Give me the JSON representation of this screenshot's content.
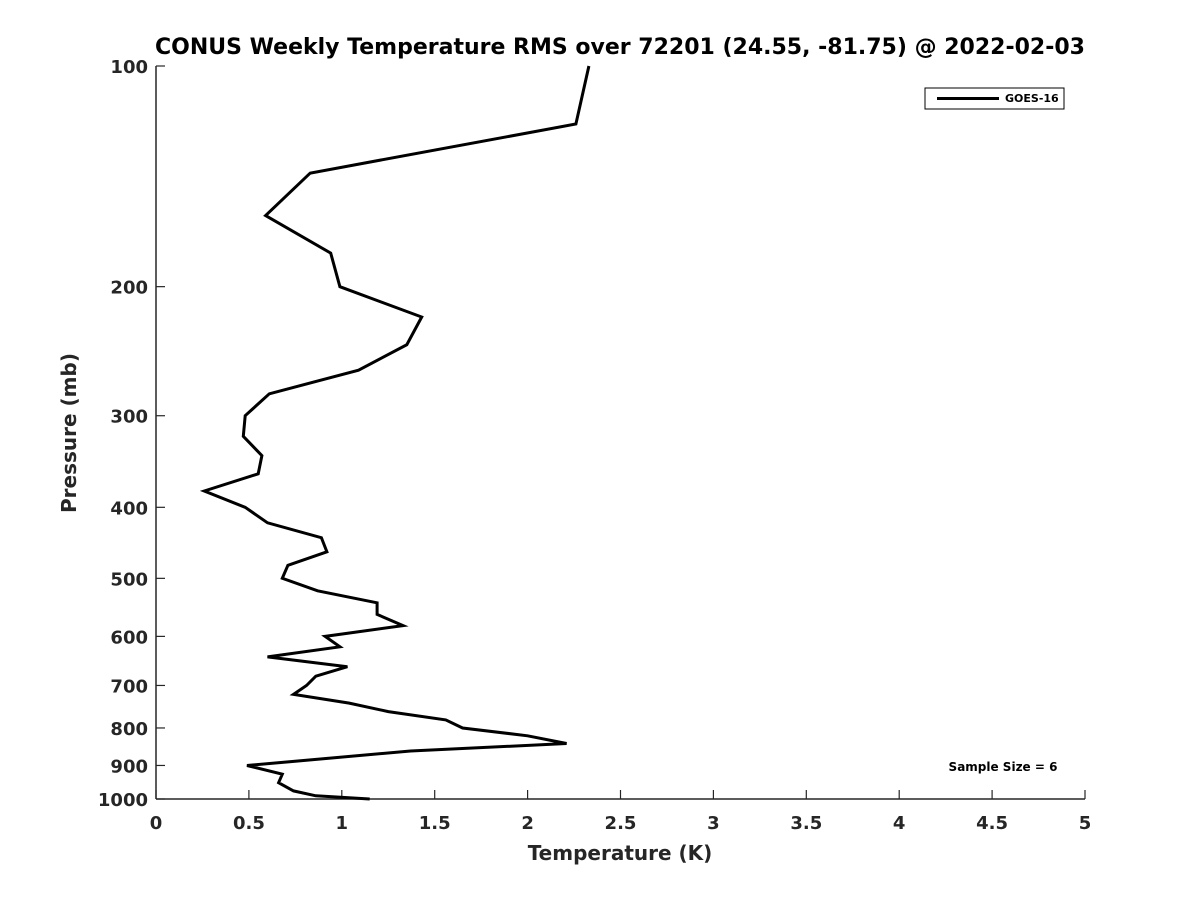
{
  "chart_data": {
    "type": "line",
    "title": "CONUS Weekly Temperature RMS over 72201 (24.55, -81.75) @ 2022-02-03",
    "xlabel": "Temperature (K)",
    "ylabel": "Pressure (mb)",
    "xlim": [
      0,
      5
    ],
    "ylim": [
      100,
      1000
    ],
    "yscale": "log",
    "yreverse": true,
    "xticks": [
      "0",
      "0.5",
      "1",
      "1.5",
      "2",
      "2.5",
      "3",
      "3.5",
      "4",
      "4.5",
      "5"
    ],
    "yticks": [
      "100",
      "200",
      "300",
      "400",
      "500",
      "600",
      "700",
      "800",
      "900",
      "1000"
    ],
    "legend": {
      "position": "top-right",
      "entries": [
        "GOES-16"
      ]
    },
    "annotation": "Sample Size = 6",
    "grid": false,
    "series": [
      {
        "name": "GOES-16",
        "color": "#000000",
        "points": [
          [
            2.33,
            100
          ],
          [
            2.26,
            120
          ],
          [
            0.83,
            140
          ],
          [
            0.59,
            160
          ],
          [
            0.94,
            180
          ],
          [
            0.99,
            200
          ],
          [
            1.43,
            220
          ],
          [
            1.35,
            240
          ],
          [
            1.09,
            260
          ],
          [
            0.61,
            280
          ],
          [
            0.48,
            300
          ],
          [
            0.47,
            320
          ],
          [
            0.57,
            340
          ],
          [
            0.55,
            360
          ],
          [
            0.26,
            380
          ],
          [
            0.48,
            400
          ],
          [
            0.6,
            420
          ],
          [
            0.89,
            440
          ],
          [
            0.92,
            460
          ],
          [
            0.71,
            480
          ],
          [
            0.68,
            500
          ],
          [
            0.87,
            520
          ],
          [
            1.19,
            540
          ],
          [
            1.19,
            560
          ],
          [
            1.33,
            580
          ],
          [
            0.91,
            600
          ],
          [
            0.99,
            620
          ],
          [
            0.6,
            640
          ],
          [
            1.03,
            660
          ],
          [
            0.86,
            680
          ],
          [
            0.81,
            700
          ],
          [
            0.74,
            720
          ],
          [
            1.04,
            740
          ],
          [
            1.25,
            760
          ],
          [
            1.56,
            780
          ],
          [
            1.65,
            800
          ],
          [
            2.0,
            820
          ],
          [
            2.21,
            840
          ],
          [
            1.37,
            860
          ],
          [
            0.93,
            880
          ],
          [
            0.49,
            900
          ],
          [
            0.68,
            925
          ],
          [
            0.66,
            950
          ],
          [
            0.74,
            975
          ],
          [
            0.86,
            990
          ],
          [
            1.15,
            1000
          ]
        ]
      }
    ]
  }
}
